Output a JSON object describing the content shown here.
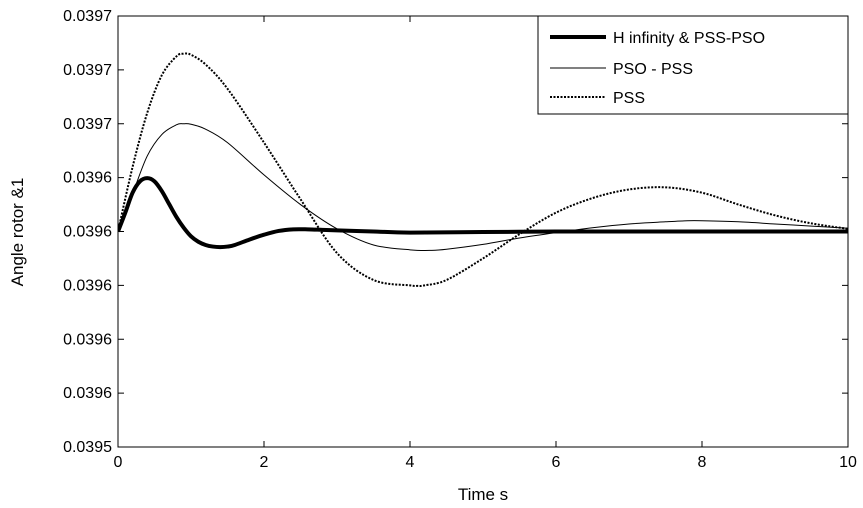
{
  "chart_data": {
    "type": "line",
    "title": "",
    "xlabel": "Time s",
    "ylabel": "Angle rotor &1",
    "xlim": [
      0,
      10
    ],
    "ylim": [
      0,
      8
    ],
    "grid": false,
    "legend_position": "top-right",
    "x_ticks": [
      {
        "value": 0,
        "label": "0"
      },
      {
        "value": 2,
        "label": "2"
      },
      {
        "value": 4,
        "label": "4"
      },
      {
        "value": 6,
        "label": "6"
      },
      {
        "value": 8,
        "label": "8"
      },
      {
        "value": 10,
        "label": "10"
      }
    ],
    "y_ticks": [
      {
        "value": 0,
        "label": "0.0395"
      },
      {
        "value": 1,
        "label": "0.0396"
      },
      {
        "value": 2,
        "label": "0.0396"
      },
      {
        "value": 3,
        "label": "0.0396"
      },
      {
        "value": 4,
        "label": "0.0396"
      },
      {
        "value": 5,
        "label": "0.0396"
      },
      {
        "value": 6,
        "label": "0.0397"
      },
      {
        "value": 7,
        "label": "0.0397"
      },
      {
        "value": 8,
        "label": "0.0397"
      }
    ],
    "series": [
      {
        "name": "H infinity & PSS-PSO",
        "style": "thick",
        "color": "#000000",
        "x": [
          0,
          0.1,
          0.2,
          0.3,
          0.4,
          0.5,
          0.6,
          0.7,
          0.8,
          0.9,
          1.0,
          1.1,
          1.2,
          1.3,
          1.4,
          1.5,
          1.6,
          1.8,
          2.0,
          2.2,
          2.4,
          2.6,
          2.8,
          3.0,
          3.5,
          4.0,
          5.0,
          6.0,
          7.0,
          8.0,
          9.0,
          10.0
        ],
        "y": [
          4.0,
          4.35,
          4.72,
          4.93,
          4.99,
          4.93,
          4.75,
          4.51,
          4.27,
          4.07,
          3.91,
          3.81,
          3.75,
          3.72,
          3.71,
          3.72,
          3.75,
          3.85,
          3.94,
          4.01,
          4.04,
          4.04,
          4.03,
          4.02,
          4.0,
          3.98,
          3.99,
          4.0,
          4.0,
          4.0,
          4.0,
          4.0
        ]
      },
      {
        "name": "PSO - PSS",
        "style": "thin",
        "color": "#000000",
        "x": [
          0,
          0.2,
          0.4,
          0.6,
          0.8,
          0.9,
          1.0,
          1.2,
          1.5,
          2.0,
          2.5,
          3.0,
          3.5,
          4.0,
          4.3,
          4.5,
          5.0,
          5.5,
          6.0,
          6.5,
          7.0,
          7.5,
          7.8,
          8.0,
          8.5,
          9.0,
          9.5,
          10.0
        ],
        "y": [
          4.0,
          4.7,
          5.4,
          5.8,
          5.98,
          6.0,
          5.99,
          5.9,
          5.65,
          5.05,
          4.5,
          4.05,
          3.75,
          3.66,
          3.65,
          3.67,
          3.76,
          3.88,
          3.98,
          4.07,
          4.14,
          4.18,
          4.2,
          4.2,
          4.18,
          4.14,
          4.1,
          4.06
        ]
      },
      {
        "name": "PSS",
        "style": "dotted",
        "color": "#000000",
        "x": [
          0,
          0.2,
          0.4,
          0.6,
          0.8,
          0.9,
          1.0,
          1.2,
          1.5,
          2.0,
          2.5,
          3.0,
          3.5,
          4.0,
          4.1,
          4.2,
          4.5,
          5.0,
          5.5,
          6.0,
          6.5,
          7.0,
          7.5,
          8.0,
          8.5,
          9.0,
          9.5,
          10.0
        ],
        "y": [
          4.0,
          5.2,
          6.2,
          6.9,
          7.25,
          7.3,
          7.28,
          7.1,
          6.65,
          5.65,
          4.6,
          3.6,
          3.1,
          3.0,
          2.99,
          3.0,
          3.1,
          3.5,
          3.95,
          4.35,
          4.62,
          4.78,
          4.82,
          4.72,
          4.5,
          4.3,
          4.15,
          4.05
        ]
      }
    ]
  }
}
